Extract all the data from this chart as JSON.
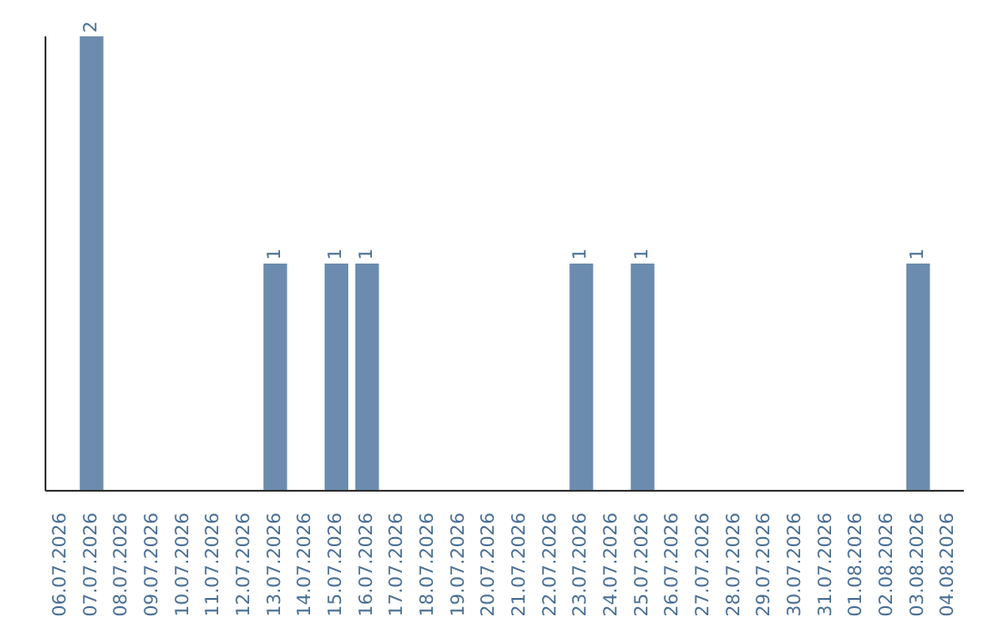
{
  "chart_data": {
    "type": "bar",
    "categories": [
      "06.07.2026",
      "07.07.2026",
      "08.07.2026",
      "09.07.2026",
      "10.07.2026",
      "11.07.2026",
      "12.07.2026",
      "13.07.2026",
      "14.07.2026",
      "15.07.2026",
      "16.07.2026",
      "17.07.2026",
      "18.07.2026",
      "19.07.2026",
      "20.07.2026",
      "21.07.2026",
      "22.07.2026",
      "23.07.2026",
      "24.07.2026",
      "25.07.2026",
      "26.07.2026",
      "27.07.2026",
      "28.07.2026",
      "29.07.2026",
      "30.07.2026",
      "31.07.2026",
      "01.08.2026",
      "02.08.2026",
      "03.08.2026",
      "04.08.2026"
    ],
    "values": [
      0,
      2,
      0,
      0,
      0,
      0,
      0,
      1,
      0,
      1,
      1,
      0,
      0,
      0,
      0,
      0,
      0,
      1,
      0,
      1,
      0,
      0,
      0,
      0,
      0,
      0,
      0,
      0,
      1,
      0
    ],
    "value_labels": [
      null,
      "2",
      null,
      null,
      null,
      null,
      null,
      "1",
      null,
      "1",
      "1",
      null,
      null,
      null,
      null,
      null,
      null,
      "1",
      null,
      "1",
      null,
      null,
      null,
      null,
      null,
      null,
      null,
      null,
      "1",
      null
    ],
    "color": "#6b8cae",
    "tick_labels": "x"
  }
}
